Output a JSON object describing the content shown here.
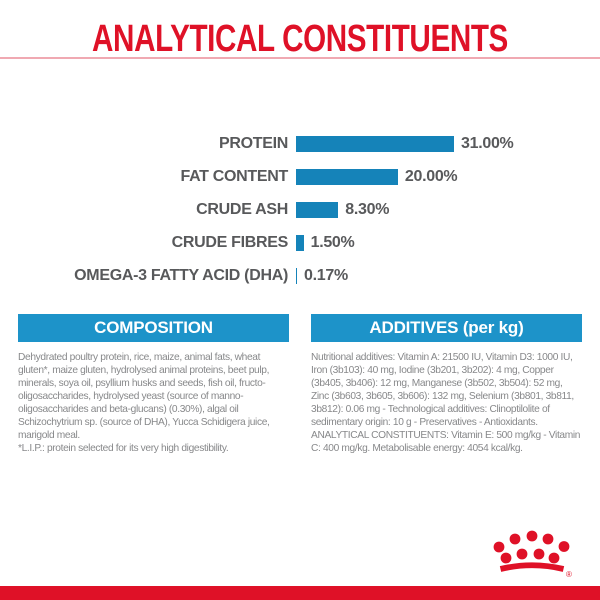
{
  "title": "ANALYTICAL CONSTITUENTS",
  "colors": {
    "red": "#df1127",
    "bar_blue": "#1583b9",
    "header_blue": "#1d93c9",
    "label_gray": "#58595b",
    "body_gray": "#87888a",
    "rule_pink": "#f0a9b2"
  },
  "chart_data": {
    "type": "bar",
    "orientation": "horizontal",
    "title": "ANALYTICAL CONSTITUENTS",
    "categories": [
      "PROTEIN",
      "FAT CONTENT",
      "CRUDE ASH",
      "CRUDE FIBRES",
      "OMEGA-3 FATTY ACID (DHA)"
    ],
    "values": [
      31.0,
      20.0,
      8.3,
      1.5,
      0.17
    ],
    "value_labels": [
      "31.00%",
      "20.00%",
      "8.30%",
      "1.50%",
      "0.17%"
    ],
    "unit": "%",
    "xlim": [
      0,
      31
    ],
    "grid": false,
    "legend": false
  },
  "composition": {
    "header": "COMPOSITION",
    "body": "Dehydrated poultry protein, rice, maize, animal fats, wheat gluten*, maize gluten, hydrolysed animal proteins, beet pulp, minerals, soya oil, psyllium husks and seeds, fish oil, fructo-oligosaccharides, hydrolysed yeast (source of manno-oligosaccharides and beta-glucans) (0.30%), algal oil Schizochytrium sp. (source of DHA), Yucca Schidigera juice, marigold meal.",
    "footnote": "*L.I.P.: protein selected for its very high digestibility."
  },
  "additives": {
    "header": "ADDITIVES (per kg)",
    "body": "Nutritional additives: Vitamin A: 21500 IU, Vitamin D3: 1000 IU, Iron (3b103): 40 mg, Iodine (3b201, 3b202): 4 mg, Copper (3b405, 3b406): 12 mg, Manganese (3b502, 3b504): 52 mg, Zinc (3b603, 3b605, 3b606): 132 mg, Selenium (3b801, 3b811, 3b812): 0.06 mg - Technological additives: Clinoptilolite of sedimentary origin: 10 g - Preservatives - Antioxidants.",
    "analytical": "ANALYTICAL CONSTITUENTS: Vitamin E: 500 mg/kg - Vitamin C: 400 mg/kg. Metabolisable energy: 4054 kcal/kg."
  },
  "logo": {
    "name": "royal-canin-crown-logo",
    "registered_mark": "®"
  }
}
